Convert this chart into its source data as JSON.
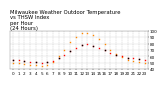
{
  "title_line1": "Milwaukee Weather Outdoor Temperature",
  "title_line2": "vs THSW Index",
  "title_line3": "per Hour",
  "title_line4": "(24 Hours)",
  "x_hours": [
    0,
    1,
    2,
    3,
    4,
    5,
    6,
    7,
    8,
    9,
    10,
    11,
    12,
    13,
    14,
    15,
    16,
    17,
    18,
    19,
    20,
    21,
    22,
    23
  ],
  "temp_values": [
    55,
    54,
    53,
    52,
    51,
    50,
    51,
    53,
    57,
    62,
    68,
    74,
    78,
    79,
    77,
    74,
    70,
    65,
    62,
    60,
    58,
    57,
    56,
    55
  ],
  "thsw_values": [
    50,
    49,
    48,
    47,
    46,
    45,
    47,
    52,
    60,
    70,
    82,
    91,
    96,
    97,
    94,
    88,
    79,
    70,
    64,
    59,
    55,
    53,
    51,
    50
  ],
  "temp_color": "#ff0000",
  "thsw_color": "#ff8800",
  "black_color": "#000000",
  "bg_color": "#ffffff",
  "grid_color": "#888888",
  "ylim_min": 40,
  "ylim_max": 100,
  "title_fontsize": 3.8,
  "tick_fontsize": 3.0,
  "marker_size": 1.0
}
